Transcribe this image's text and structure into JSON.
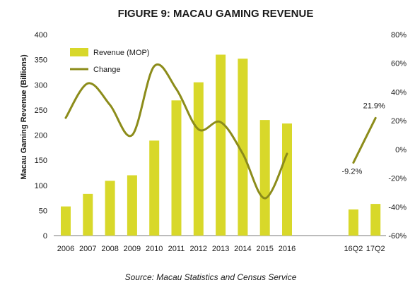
{
  "chart_data": {
    "type": "bar",
    "title": "FIGURE 9: MACAU GAMING REVENUE",
    "ylabel": "Macau Gaming Revenue (Billions)",
    "y2label": "",
    "categories": [
      "2006",
      "2007",
      "2008",
      "2009",
      "2010",
      "2011",
      "2012",
      "2013",
      "2014",
      "2015",
      "2016",
      "",
      "",
      "16Q2",
      "17Q2"
    ],
    "ylim": [
      0,
      400
    ],
    "yticks": [
      "0",
      "50",
      "100",
      "150",
      "200",
      "250",
      "300",
      "350",
      "400"
    ],
    "y2lim": [
      -60,
      80
    ],
    "y2ticks": [
      "-60%",
      "-40%",
      "-20%",
      "0%",
      "20%",
      "40%",
      "60%",
      "80%"
    ],
    "series": [
      {
        "name": "Revenue (MOP)",
        "kind": "bar",
        "axis": "left",
        "color": "#d8d82a",
        "values": [
          58,
          83,
          109,
          120,
          189,
          269,
          305,
          360,
          352,
          230,
          223,
          null,
          null,
          52,
          63
        ]
      },
      {
        "name": "Change",
        "kind": "line",
        "axis": "right",
        "color": "#8c8c1a",
        "values": [
          22,
          46,
          31,
          10,
          58,
          42,
          14,
          19,
          -3,
          -34,
          -3,
          null,
          null,
          -9.2,
          21.9
        ]
      }
    ],
    "annotations": [
      "-9.2%",
      "21.9%"
    ],
    "legend_position": "top-left",
    "grid": false
  },
  "source_text": "Source: Macau Statistics and Census Service"
}
